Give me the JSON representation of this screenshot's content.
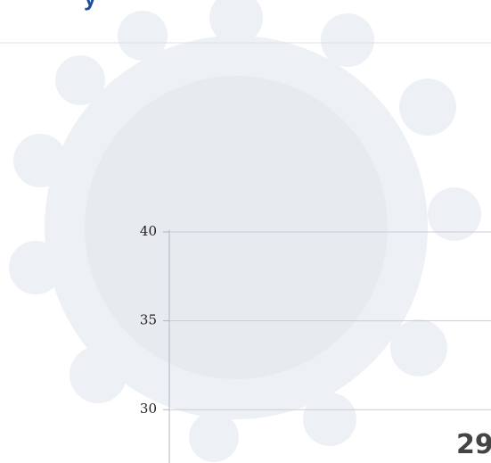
{
  "chart_data": {
    "type": "line",
    "title": "y",
    "annotation": "29",
    "ylim": [
      27,
      40
    ],
    "yticks": [
      30,
      35,
      40
    ],
    "grid": true,
    "grid_color": "#c9ced6",
    "axis_color": "#b0b6bf"
  }
}
